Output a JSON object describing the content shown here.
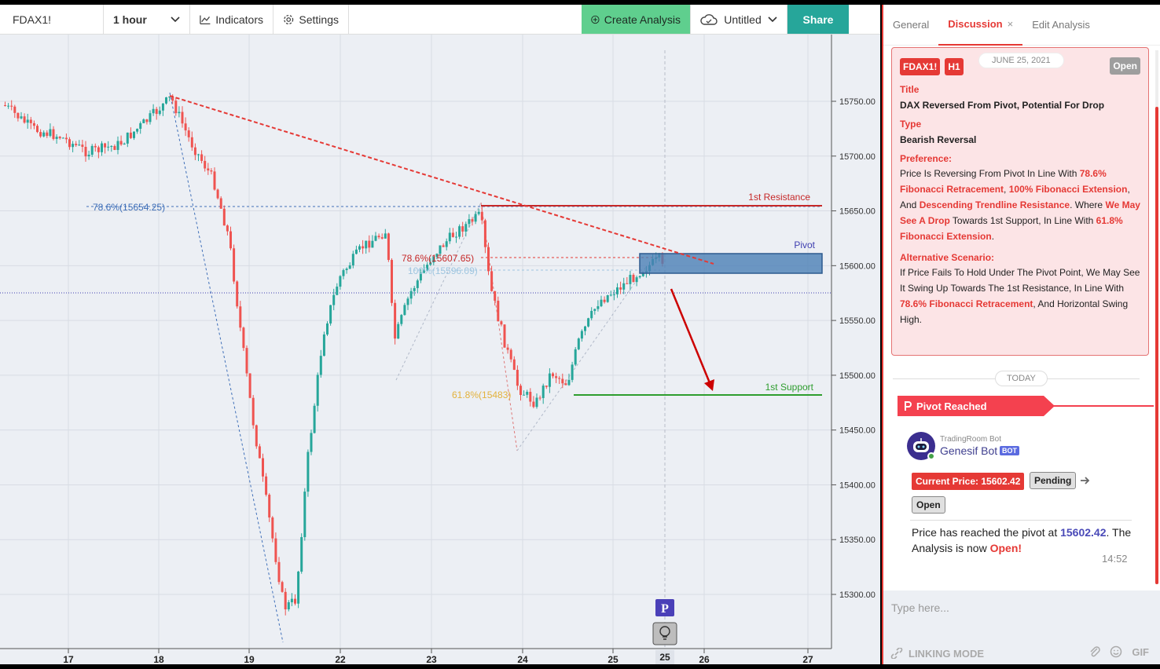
{
  "toolbar": {
    "symbol": "FDAX1!",
    "interval": "1 hour",
    "indicators_label": "Indicators",
    "settings_label": "Settings",
    "create_label": "Create Analysis",
    "layout_name": "Untitled",
    "share_label": "Share"
  },
  "chart": {
    "price_ticks": [
      "15750.00",
      "15700.00",
      "15650.00",
      "15600.00",
      "15550.00",
      "15500.00",
      "15450.00",
      "15400.00",
      "15350.00",
      "15300.00"
    ],
    "date_ticks": [
      "17",
      "18",
      "19",
      "22",
      "23",
      "24",
      "25",
      "26",
      "27"
    ],
    "date_highlight": "25",
    "annotations": {
      "resistance_label": "1st Resistance",
      "support_label": "1st Support",
      "pivot_label": "Pivot",
      "fib_786_left": "78.6%(15654.25)",
      "fib_786_mid": "78.6%(15607.65)",
      "fib_100": "100%(15596.09)",
      "fib_618": "61.8%(15483)",
      "pivot_marker": "P"
    },
    "colors": {
      "up": "#26a69a",
      "down": "#ef5350",
      "resistance": "#c62828",
      "support": "#2e9d2e",
      "pivot_zone": "#4b7fb5",
      "trend": "#e53935"
    }
  },
  "side": {
    "tabs": {
      "general": "General",
      "discussion": "Discussion",
      "discussion_close": "×",
      "edit": "Edit Analysis"
    },
    "card": {
      "symbol": "FDAX1!",
      "timeframe": "H1",
      "date": "JUNE 25, 2021",
      "status": "Open",
      "title_label": "Title",
      "title": "DAX Reversed From Pivot, Potential For Drop",
      "type_label": "Type",
      "type": "Bearish Reversal",
      "preference_label": "Preference:",
      "pref_1": " Price Is Reversing From Pivot In Line With ",
      "pref_h1": "78.6% Fibonacci Retracement",
      "pref_2": ", ",
      "pref_h2": "100% Fibonacci Extension",
      "pref_3": ", And ",
      "pref_h3": "Descending Trendline Resistance",
      "pref_4": ". Where ",
      "pref_h4": "We May See A Drop",
      "pref_5": " Towards 1st Support, In Line With ",
      "pref_h5": "61.8% Fibonacci Extension",
      "pref_6": ".",
      "alt_label": "Alternative Scenario:",
      "alt_1": "If Price Fails To Hold Under The Pivot Point, We May See It Swing Up Towards The 1st Resistance, In Line With ",
      "alt_h1": "78.6% Fibonacci Retracement",
      "alt_2": ", And Horizontal Swing High."
    },
    "today_label": "TODAY",
    "banner": "Pivot Reached",
    "bot": {
      "source": "TradingRoom Bot",
      "name": "Genesif Bot",
      "badge": "BOT",
      "price_label": "Current Price: 15602.42",
      "pending_label": "Pending",
      "open_label": "Open",
      "msg_1": "Price has reached the pivot at ",
      "msg_price": "15602.42",
      "msg_2": ". The Analysis is now ",
      "msg_status": "Open!",
      "time": "14:52"
    },
    "input_placeholder": "Type here...",
    "linking_label": "LINKING MODE",
    "gif_label": "GIF"
  }
}
